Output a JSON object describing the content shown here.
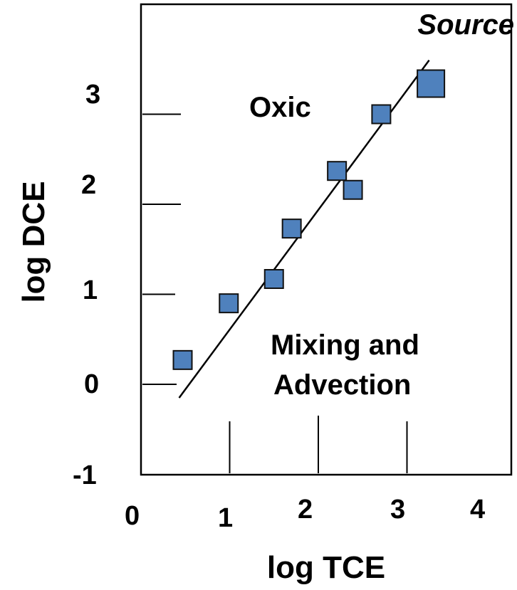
{
  "chart_data": {
    "type": "scatter",
    "xlabel": "log TCE",
    "ylabel": "log DCE",
    "xlim": [
      0,
      4
    ],
    "ylim": [
      -1,
      3.65
    ],
    "x_ticks": [
      {
        "value": 0,
        "label": "0"
      },
      {
        "value": 1,
        "label": "1"
      },
      {
        "value": 2,
        "label": "2"
      },
      {
        "value": 3,
        "label": "3"
      },
      {
        "value": 4,
        "label": "4"
      }
    ],
    "y_ticks": [
      {
        "value": -1,
        "label": "-1"
      },
      {
        "value": 0,
        "label": "0"
      },
      {
        "value": 1,
        "label": "1"
      },
      {
        "value": 2,
        "label": "2"
      },
      {
        "value": 3,
        "label": "3"
      }
    ],
    "points": [
      {
        "x": 0.47,
        "y": 0.27
      },
      {
        "x": 0.99,
        "y": 0.9
      },
      {
        "x": 1.5,
        "y": 1.17
      },
      {
        "x": 1.7,
        "y": 1.73
      },
      {
        "x": 2.21,
        "y": 2.37
      },
      {
        "x": 2.39,
        "y": 2.16
      },
      {
        "x": 2.71,
        "y": 3.0
      },
      {
        "x": 3.27,
        "y": 3.34
      }
    ],
    "source_point": {
      "x": 3.27,
      "y": 3.34,
      "label": "Source"
    },
    "trend_line": {
      "x": [
        0.43,
        3.25
      ],
      "y": [
        -0.15,
        3.6
      ]
    },
    "annotations": {
      "oxic": "Oxic",
      "mixing_line1": "Mixing and",
      "mixing_line2": "Advection"
    },
    "marker_color": "#4f81bd",
    "grid": false,
    "legend": "none"
  }
}
